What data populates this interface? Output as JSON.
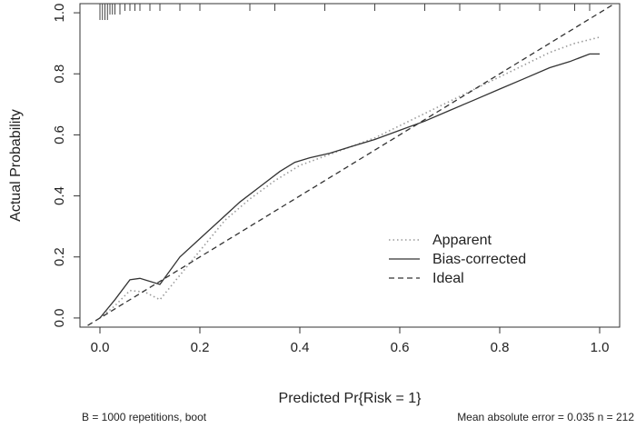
{
  "chart_data": {
    "type": "line",
    "xlabel": "Predicted Pr{Risk = 1}",
    "ylabel": "Actual Probability",
    "xlim": [
      -0.04,
      1.04
    ],
    "ylim": [
      -0.03,
      1.03
    ],
    "x_ticks": [
      "0.0",
      "0.2",
      "0.4",
      "0.6",
      "0.8",
      "1.0"
    ],
    "y_ticks": [
      "0.0",
      "0.2",
      "0.4",
      "0.6",
      "0.8",
      "1.0"
    ],
    "grid": false,
    "legend_position": "bottom-right",
    "series": [
      {
        "name": "Apparent",
        "style": "dotted",
        "color": "#9a9a9a",
        "x": [
          0.0,
          0.03,
          0.06,
          0.09,
          0.12,
          0.15,
          0.2,
          0.25,
          0.3,
          0.35,
          0.4,
          0.45,
          0.5,
          0.55,
          0.6,
          0.65,
          0.7,
          0.75,
          0.8,
          0.85,
          0.9,
          0.95,
          1.0
        ],
        "y": [
          0.0,
          0.04,
          0.09,
          0.085,
          0.06,
          0.12,
          0.22,
          0.32,
          0.39,
          0.45,
          0.5,
          0.53,
          0.56,
          0.59,
          0.63,
          0.67,
          0.71,
          0.75,
          0.79,
          0.83,
          0.87,
          0.9,
          0.92
        ]
      },
      {
        "name": "Bias-corrected",
        "style": "solid",
        "color": "#333333",
        "x": [
          0.0,
          0.03,
          0.06,
          0.08,
          0.12,
          0.16,
          0.2,
          0.24,
          0.28,
          0.32,
          0.36,
          0.39,
          0.42,
          0.46,
          0.5,
          0.55,
          0.6,
          0.65,
          0.7,
          0.75,
          0.8,
          0.85,
          0.9,
          0.94,
          0.98,
          1.0
        ],
        "y": [
          0.0,
          0.06,
          0.125,
          0.13,
          0.11,
          0.2,
          0.26,
          0.32,
          0.38,
          0.43,
          0.48,
          0.51,
          0.525,
          0.54,
          0.56,
          0.585,
          0.615,
          0.645,
          0.68,
          0.715,
          0.75,
          0.785,
          0.82,
          0.84,
          0.865,
          0.865
        ]
      },
      {
        "name": "Ideal",
        "style": "dashed",
        "color": "#333333",
        "x": [
          -0.04,
          1.04
        ],
        "y": [
          -0.04,
          1.04
        ]
      }
    ],
    "rug_x": [
      0.0,
      0.005,
      0.01,
      0.015,
      0.02,
      0.025,
      0.03,
      0.04,
      0.05,
      0.06,
      0.07,
      0.08,
      0.1,
      0.12,
      0.16,
      0.2,
      0.3,
      0.35,
      0.45,
      0.55,
      0.65,
      0.72,
      0.8,
      0.88,
      0.95,
      0.98
    ]
  },
  "footer": {
    "left": "B = 1000 repetitions, boot",
    "right": "Mean absolute error = 0.035  n = 212"
  }
}
